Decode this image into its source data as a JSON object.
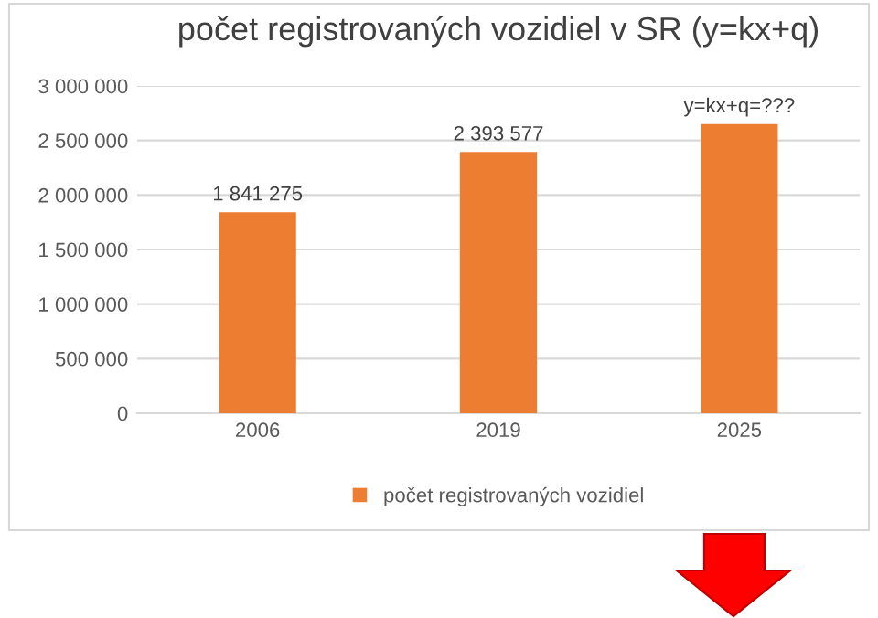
{
  "chart_data": {
    "type": "bar",
    "title": "počet registrovaných vozidiel v SR (y=kx+q)",
    "categories": [
      "2006",
      "2019",
      "2025"
    ],
    "series": [
      {
        "name": "počet registrovaných vozidiel",
        "color": "#ed7d31",
        "values": [
          1841275,
          2393577,
          2650000
        ],
        "value_labels": [
          "1 841 275",
          "2 393 577",
          "y=kx+q=???"
        ]
      }
    ],
    "ylim": [
      0,
      3000000
    ],
    "yticks": [
      {
        "value": 0,
        "label": "0"
      },
      {
        "value": 500000,
        "label": "500 000"
      },
      {
        "value": 1000000,
        "label": "1 000 000"
      },
      {
        "value": 1500000,
        "label": "1 500 000"
      },
      {
        "value": 2000000,
        "label": "2 000 000"
      },
      {
        "value": 2500000,
        "label": "2 500 000"
      },
      {
        "value": 3000000,
        "label": "3 000 000"
      }
    ],
    "grid": "y",
    "legend": "bottom"
  }
}
